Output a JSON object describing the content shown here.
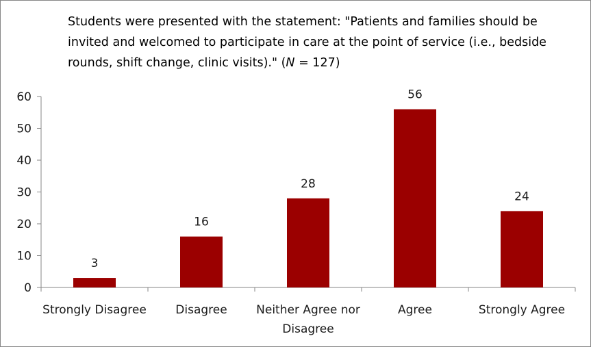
{
  "chart_data": {
    "type": "bar",
    "title": {
      "before": "Students were presented with the statement: \"Patients and families should be invited and welcomed to participate in care at the point of service (i.e., bedside rounds, shift change, clinic visits).\" (",
      "nvar": "N",
      "after": " = 127)"
    },
    "categories": [
      [
        "Strongly Disagree"
      ],
      [
        "Disagree"
      ],
      [
        "Neither Agree nor",
        "Disagree"
      ],
      [
        "Agree"
      ],
      [
        "Strongly Agree"
      ]
    ],
    "values": [
      3,
      16,
      28,
      56,
      24
    ],
    "data_labels": [
      "3",
      "16",
      "28",
      "56",
      "24"
    ],
    "ylim": [
      0,
      60
    ],
    "yticks": [
      0,
      10,
      20,
      30,
      40,
      50,
      60
    ],
    "xlabel": "",
    "ylabel": "",
    "grid": false,
    "legend": "none",
    "bar_color": "#9b0000"
  }
}
